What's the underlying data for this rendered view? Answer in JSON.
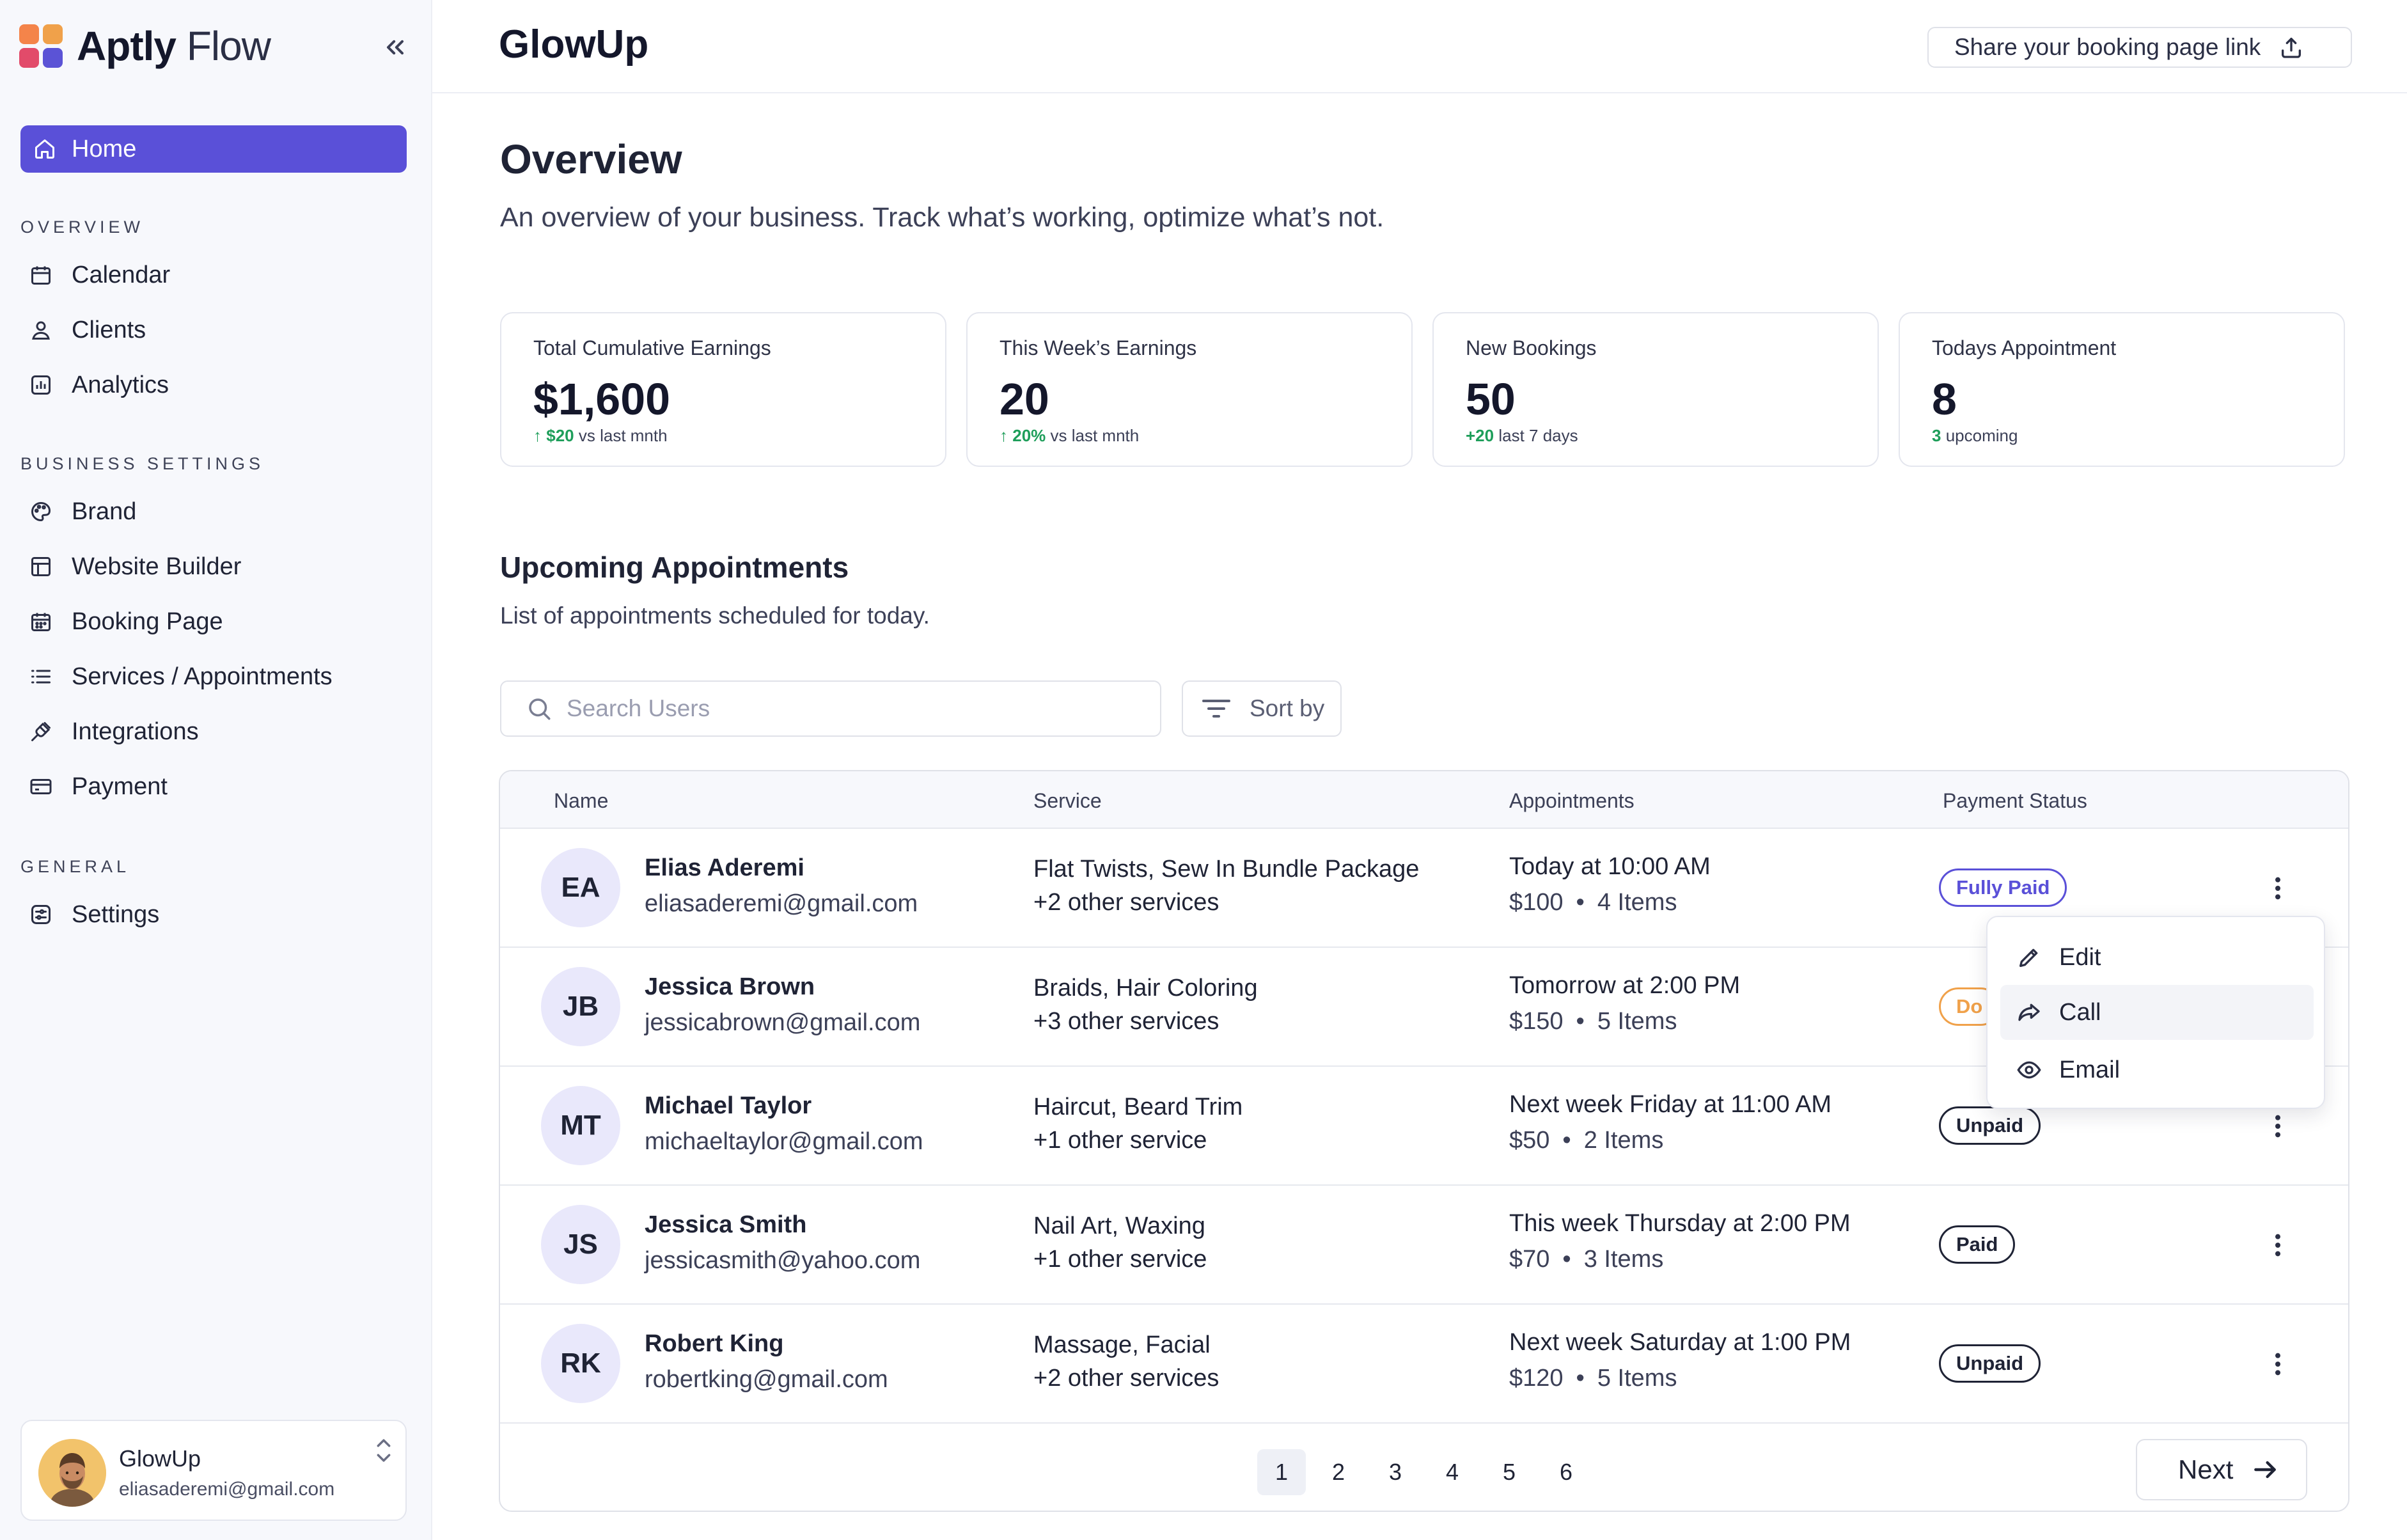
{
  "brand": {
    "name_bold": "Aptly",
    "name_light": "Flow"
  },
  "sidebar": {
    "home_label": "Home",
    "sections": [
      {
        "title": "OVERVIEW"
      },
      {
        "title": "BUSINESS SETTINGS"
      },
      {
        "title": "GENERAL"
      }
    ],
    "overview_items": [
      {
        "label": "Calendar",
        "icon": "calendar-icon"
      },
      {
        "label": "Clients",
        "icon": "user-icon"
      },
      {
        "label": "Analytics",
        "icon": "analytics-icon"
      }
    ],
    "business_items": [
      {
        "label": "Brand",
        "icon": "palette-icon"
      },
      {
        "label": "Website Builder",
        "icon": "layout-icon"
      },
      {
        "label": "Booking Page",
        "icon": "booking-calendar-icon"
      },
      {
        "label": "Services / Appointments",
        "icon": "list-icon"
      },
      {
        "label": "Integrations",
        "icon": "plug-icon"
      },
      {
        "label": "Payment",
        "icon": "credit-card-icon"
      }
    ],
    "general_items": [
      {
        "label": "Settings",
        "icon": "settings-icon"
      }
    ],
    "account": {
      "name": "GlowUp",
      "email": "eliasaderemi@gmail.com"
    }
  },
  "header": {
    "title": "GlowUp",
    "share_label": "Share your booking page link"
  },
  "overview": {
    "title": "Overview",
    "subtitle": "An overview of your business. Track what’s working, optimize what’s not."
  },
  "stats": [
    {
      "label": "Total Cumulative Earnings",
      "value": "$1,600",
      "delta": "$20",
      "delta_suffix": "vs last mnth"
    },
    {
      "label": "This Week’s Earnings",
      "value": "20",
      "delta": "20%",
      "delta_suffix": "vs last mnth"
    },
    {
      "label": "New Bookings",
      "value": "50",
      "delta": "+20",
      "delta_suffix": "last 7 days"
    },
    {
      "label": "Todays Appointment",
      "value": "8",
      "delta": "3",
      "delta_suffix": "upcoming"
    }
  ],
  "appointments": {
    "title": "Upcoming Appointments",
    "subtitle": "List of appointments scheduled for today.",
    "search_placeholder": "Search Users",
    "sort_label": "Sort by",
    "columns": [
      "Name",
      "Service",
      "Appointments",
      "Payment Status"
    ],
    "rows": [
      {
        "initials": "EA",
        "name": "Elias Aderemi",
        "email": "eliasaderemi@gmail.com",
        "service": "Flat Twists, Sew In Bundle Package",
        "service_extra": "+2 other services",
        "when": "Today at 10:00 AM",
        "price": "$100",
        "items": "4 Items",
        "status": "Fully Paid"
      },
      {
        "initials": "JB",
        "name": "Jessica Brown",
        "email": "jessicabrown@gmail.com",
        "service": "Braids, Hair Coloring",
        "service_extra": "+3 other services",
        "when": "Tomorrow at 2:00 PM",
        "price": "$150",
        "items": "5 Items",
        "status": "Do"
      },
      {
        "initials": "MT",
        "name": "Michael Taylor",
        "email": "michaeltaylor@gmail.com",
        "service": "Haircut, Beard Trim",
        "service_extra": "+1 other service",
        "when": "Next week Friday at 11:00 AM",
        "price": "$50",
        "items": "2 Items",
        "status": "Unpaid"
      },
      {
        "initials": "JS",
        "name": "Jessica Smith",
        "email": "jessicasmith@yahoo.com",
        "service": "Nail Art, Waxing",
        "service_extra": "+1 other service",
        "when": "This week Thursday at 2:00 PM",
        "price": "$70",
        "items": "3 Items",
        "status": "Paid"
      },
      {
        "initials": "RK",
        "name": "Robert King",
        "email": "robertking@gmail.com",
        "service": "Massage, Facial",
        "service_extra": "+2 other services",
        "when": "Next week Saturday at 1:00 PM",
        "price": "$120",
        "items": "5 Items",
        "status": "Unpaid"
      }
    ],
    "row_menu": [
      {
        "label": "Edit",
        "icon": "pencil-icon"
      },
      {
        "label": "Call",
        "icon": "share-arrow-icon"
      },
      {
        "label": "Email",
        "icon": "eye-icon"
      }
    ],
    "pagination": {
      "pages": [
        "1",
        "2",
        "3",
        "4",
        "5",
        "6"
      ],
      "current": "1",
      "next_label": "Next"
    }
  },
  "colors": {
    "accent": "#5a50d8",
    "positive": "#1e9e5a",
    "pending": "#f0a14a"
  }
}
